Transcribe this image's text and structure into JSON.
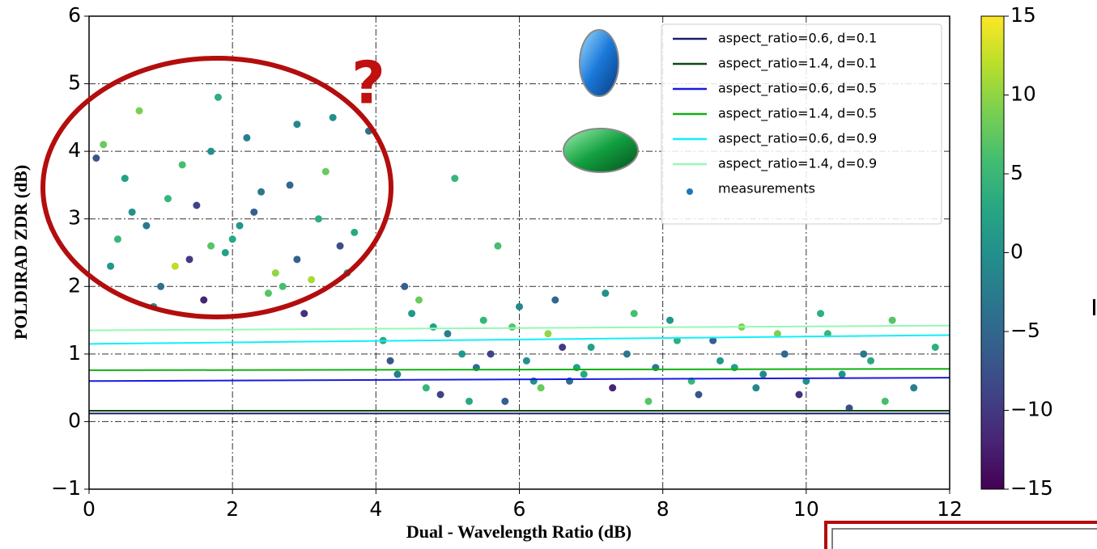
{
  "chart_data": {
    "type": "scatter",
    "xlabel": "Dual - Wavelength Ratio (dB)",
    "ylabel": "POLDIRAD ZDR (dB)",
    "annotations": [
      "?"
    ],
    "xlim": [
      0,
      12
    ],
    "ylim": [
      -1,
      6
    ],
    "xticks": [
      0,
      2,
      4,
      6,
      8,
      10,
      12
    ],
    "yticks": [
      {
        "value": -1,
        "label": "−1"
      },
      0,
      1,
      2,
      3,
      4,
      5,
      6
    ],
    "grid": true,
    "legend": "upper right",
    "clim": [
      -15,
      15
    ],
    "cticks": [
      {
        "value": -15,
        "label": "−15"
      },
      {
        "value": -10,
        "label": "−10"
      },
      {
        "value": -5,
        "label": "−5"
      },
      0,
      5,
      10,
      15
    ],
    "colormap": "viridis",
    "series": [
      {
        "name": "aspect_ratio=0.6, d=0.1",
        "type": "line",
        "color": "#1c1c6e",
        "x": [
          0,
          12
        ],
        "values": [
          0.12,
          0.12
        ]
      },
      {
        "name": "aspect_ratio=1.4, d=0.1",
        "type": "line",
        "color": "#0a4a12",
        "x": [
          0,
          12
        ],
        "values": [
          0.16,
          0.16
        ]
      },
      {
        "name": "aspect_ratio=0.6, d=0.5",
        "type": "line",
        "color": "#1a1ade",
        "x": [
          0,
          12
        ],
        "values": [
          0.6,
          0.65
        ]
      },
      {
        "name": "aspect_ratio=1.4, d=0.5",
        "type": "line",
        "color": "#10b010",
        "x": [
          0,
          12
        ],
        "values": [
          0.76,
          0.78
        ]
      },
      {
        "name": "aspect_ratio=0.6, d=0.9",
        "type": "line",
        "color": "#10f0f8",
        "x": [
          0,
          12
        ],
        "values": [
          1.15,
          1.28
        ]
      },
      {
        "name": "aspect_ratio=1.4, d=0.9",
        "type": "line",
        "color": "#96f8b4",
        "x": [
          0,
          12
        ],
        "values": [
          1.35,
          1.42
        ]
      },
      {
        "name": "measurements",
        "type": "scatter",
        "color": "#1f77b4",
        "x": [
          0.2,
          0.5,
          0.8,
          1.1,
          1.4,
          1.7,
          2.0,
          2.3,
          2.6,
          2.9,
          3.2,
          3.5,
          0.3,
          0.7,
          1.0,
          1.3,
          1.6,
          1.9,
          2.2,
          2.5,
          2.8,
          3.1,
          3.4,
          3.7,
          0.1,
          0.4,
          0.9,
          1.2,
          1.5,
          1.8,
          2.1,
          2.4,
          2.7,
          3.0,
          3.3,
          3.6,
          3.9,
          0.6,
          1.7,
          2.9,
          4.1,
          4.3,
          4.6,
          4.9,
          5.2,
          5.5,
          5.8,
          6.1,
          6.4,
          6.7,
          7.0,
          7.3,
          7.6,
          7.9,
          8.2,
          8.5,
          8.8,
          9.1,
          9.4,
          9.7,
          10.0,
          10.3,
          10.6,
          10.9,
          11.2,
          11.5,
          11.8,
          4.4,
          4.8,
          5.1,
          5.4,
          5.7,
          6.0,
          6.3,
          6.6,
          6.9,
          7.2,
          7.5,
          7.8,
          8.1,
          8.4,
          8.7,
          9.0,
          9.3,
          9.6,
          9.9,
          10.2,
          10.5,
          10.8,
          11.1,
          4.2,
          4.5,
          4.7,
          5.0,
          5.3,
          5.6,
          5.9,
          6.2,
          6.5,
          6.8
        ],
        "values": [
          4.1,
          3.6,
          2.9,
          3.3,
          2.4,
          4.0,
          2.7,
          3.1,
          2.2,
          4.4,
          3.0,
          2.6,
          2.3,
          4.6,
          2.0,
          3.8,
          1.8,
          2.5,
          4.2,
          1.9,
          3.5,
          2.1,
          4.5,
          2.8,
          3.9,
          2.7,
          1.7,
          2.3,
          3.2,
          4.8,
          2.9,
          3.4,
          2.0,
          1.6,
          3.7,
          2.2,
          4.3,
          3.1,
          2.6,
          2.4,
          1.2,
          0.7,
          1.8,
          0.4,
          1.0,
          1.5,
          0.3,
          0.9,
          1.3,
          0.6,
          1.1,
          0.5,
          1.6,
          0.8,
          1.2,
          0.4,
          0.9,
          1.4,
          0.7,
          1.0,
          0.6,
          1.3,
          0.2,
          0.9,
          1.5,
          0.5,
          1.1,
          2.0,
          1.4,
          3.6,
          0.8,
          2.6,
          1.7,
          0.5,
          1.1,
          0.7,
          1.9,
          1.0,
          0.3,
          1.5,
          0.6,
          1.2,
          0.8,
          0.5,
          1.3,
          0.4,
          1.6,
          0.7,
          1.0,
          0.3,
          0.9,
          1.6,
          0.5,
          1.3,
          0.3,
          1.0,
          1.4,
          0.6,
          1.8,
          0.8
        ],
        "c": [
          8,
          2,
          -3,
          5,
          -10,
          0,
          3,
          -6,
          10,
          -1,
          4,
          -8,
          1,
          9,
          -4,
          6,
          -12,
          2,
          -2,
          7,
          -5,
          11,
          0,
          3,
          -7,
          5,
          -1,
          12,
          -9,
          4,
          1,
          -3,
          6,
          -11,
          8,
          2,
          -4,
          0,
          7,
          -6,
          3,
          -2,
          8,
          -9,
          1,
          5,
          -6,
          0,
          10,
          -4,
          2,
          -12,
          6,
          -3,
          4,
          -7,
          1,
          9,
          -1,
          -5,
          0,
          5,
          -8,
          3,
          7,
          -2,
          4,
          -6,
          2,
          5,
          -4,
          6,
          -1,
          8,
          -10,
          3,
          0,
          -3,
          7,
          1,
          5,
          -6,
          2,
          -1,
          9,
          -11,
          4,
          0,
          -3,
          6,
          -7,
          1,
          5,
          -2,
          3,
          -9,
          7,
          0,
          -5,
          2
        ]
      }
    ]
  }
}
